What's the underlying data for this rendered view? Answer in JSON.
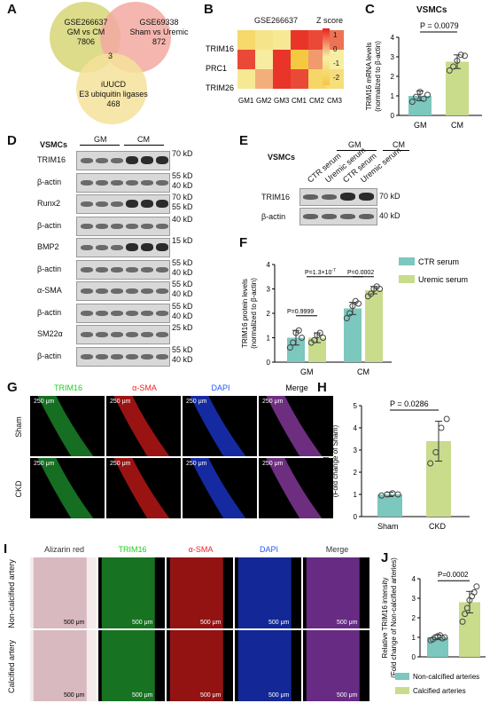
{
  "panels": {
    "A": {
      "label": "A",
      "circle1": [
        "GSE266637",
        "GM vs CM",
        "7806"
      ],
      "circle2": [
        "GSE69338",
        "Sham vs Uremic",
        "872"
      ],
      "circle3": [
        "iUUCD",
        "E3 ubiquitin ligases",
        "468"
      ],
      "overlap": "3",
      "colors": {
        "c1": "#dcdc8a",
        "c2": "#f2a9a0",
        "c3": "#f5e29a"
      }
    },
    "B": {
      "label": "B",
      "title": "GSE266637",
      "rows": [
        "TRIM16",
        "PRC1",
        "TRIM26"
      ],
      "cols": [
        "GM1",
        "GM2",
        "GM3",
        "CM1",
        "CM2",
        "CM3"
      ],
      "matrix": [
        [
          -1.2,
          -0.6,
          -0.4,
          0.9,
          0.8,
          0.6
        ],
        [
          0.8,
          -0.2,
          0.9,
          -2,
          0.4,
          -0.1
        ],
        [
          -0.4,
          0.3,
          0.9,
          0.8,
          -1.3,
          -0.9
        ]
      ],
      "legend_title": "Z score",
      "legend_ticks": [
        "1",
        "0",
        "-1",
        "-2"
      ]
    },
    "C": {
      "label": "C",
      "title": "VSMCs",
      "pvalue": "P = 0.0079",
      "ylabel": "TRIM16 mRNA levels (normalized to β-actin)",
      "yticks": [
        "0",
        "1",
        "2",
        "3",
        "4"
      ],
      "categories": [
        "GM",
        "CM"
      ]
    },
    "D": {
      "label": "D",
      "title": "VSMCs",
      "groups": [
        "GM",
        "CM"
      ],
      "rows": [
        {
          "name": "TRIM16",
          "marks": [
            "70 kD"
          ]
        },
        {
          "name": "β-actin",
          "marks": [
            "55 kD",
            "40 kD"
          ]
        },
        {
          "name": "Runx2",
          "marks": [
            "70 kD",
            "55 kD"
          ]
        },
        {
          "name": "β-actin",
          "marks": [
            "40 kD"
          ]
        },
        {
          "name": "BMP2",
          "marks": [
            "15 kD"
          ]
        },
        {
          "name": "β-actin",
          "marks": [
            "55 kD",
            "40 kD"
          ]
        },
        {
          "name": "α-SMA",
          "marks": [
            "55 kD",
            "40 kD"
          ]
        },
        {
          "name": "β-actin",
          "marks": [
            "55 kD",
            "40 kD"
          ]
        },
        {
          "name": "SM22α",
          "marks": [
            "25 kD"
          ]
        },
        {
          "name": "β-actin",
          "marks": [
            "55 kD",
            "40 kD"
          ]
        }
      ]
    },
    "E": {
      "label": "E",
      "title": "VSMCs",
      "groups": [
        "GM",
        "CM"
      ],
      "lanes": [
        "CTR serum",
        "Uremic serum",
        "CTR serum",
        "Uremic serum"
      ],
      "rows": [
        {
          "name": "TRIM16",
          "marks": [
            "70 kD"
          ]
        },
        {
          "name": "β-actin",
          "marks": [
            "40 kD"
          ]
        }
      ]
    },
    "F": {
      "label": "F",
      "ylabel": "TRIM16 protein levels (normalized to β-actin)",
      "yticks": [
        "0",
        "1",
        "2",
        "3",
        "4"
      ],
      "categories": [
        "GM",
        "CM"
      ],
      "p1": "P=0.9999",
      "p2": "P=0.0002",
      "p3": "P=1.3×10",
      "p3sup": "-7",
      "legend": [
        "CTR serum",
        "Uremic serum"
      ]
    },
    "G": {
      "label": "G",
      "cols": [
        "TRIM16",
        "α-SMA",
        "DAPI",
        "Merge"
      ],
      "rows": [
        "Sham",
        "CKD"
      ],
      "scale": "250 μm",
      "colcolors": [
        "#22cc22",
        "#ee2222",
        "#2255ff",
        "#ffffff"
      ]
    },
    "H": {
      "label": "H",
      "pvalue": "P = 0.0286",
      "ylabel": "Relative TRIM16 intensity (Fold change of Sham)",
      "yticks": [
        "0",
        "1",
        "2",
        "3",
        "4",
        "5"
      ],
      "categories": [
        "Sham",
        "CKD"
      ]
    },
    "I": {
      "label": "I",
      "cols": [
        "Alizarin red",
        "TRIM16",
        "α-SMA",
        "DAPI",
        "Merge"
      ],
      "rows": [
        "Non-calcified artery",
        "Calcified artery"
      ],
      "scale": "500 μm",
      "colcolors": [
        "#333333",
        "#22cc22",
        "#ee2222",
        "#2255ff",
        "#333333"
      ]
    },
    "J": {
      "label": "J",
      "pvalue": "P=0.0002",
      "ylabel": "Relative TRIM16 intensity (Fold change of Non-calcified arteries)",
      "yticks": [
        "0",
        "1",
        "2",
        "3",
        "4"
      ],
      "legend": [
        "Non-calcified arteries",
        "Calcified arteries"
      ]
    }
  },
  "chart_data": [
    {
      "type": "bar",
      "categories": [
        "GM",
        "CM"
      ],
      "values": [
        1.0,
        2.75
      ],
      "ylim": [
        0,
        4
      ],
      "points": [
        [
          0.7,
          0.95,
          1.2,
          0.85,
          1.05
        ],
        [
          2.3,
          2.5,
          2.8,
          3.1,
          3.05
        ]
      ]
    },
    {
      "type": "bar",
      "categories": [
        "GM",
        "CM"
      ],
      "series": [
        {
          "name": "CTR serum",
          "values": [
            1.0,
            2.2
          ],
          "points": [
            [
              0.6,
              0.8,
              1.2,
              1.3,
              1.0
            ],
            [
              1.8,
              2.0,
              2.3,
              2.5,
              2.4
            ]
          ]
        },
        {
          "name": "Uremic serum",
          "values": [
            1.0,
            2.95
          ],
          "points": [
            [
              0.8,
              0.9,
              1.1,
              1.2,
              1.0
            ],
            [
              2.7,
              2.8,
              3.0,
              3.1,
              3.0
            ]
          ]
        }
      ],
      "ylim": [
        0,
        4
      ]
    },
    {
      "type": "bar",
      "categories": [
        "Sham",
        "CKD"
      ],
      "values": [
        1.0,
        3.4
      ],
      "ylim": [
        0,
        5
      ],
      "points": [
        [
          0.95,
          1.0,
          1.05,
          1.0
        ],
        [
          2.4,
          2.9,
          4.0,
          4.4
        ]
      ]
    },
    {
      "type": "bar",
      "categories": [
        "Non-calcified arteries",
        "Calcified arteries"
      ],
      "values": [
        1.0,
        2.8
      ],
      "ylim": [
        0,
        4
      ],
      "points": [
        [
          0.85,
          0.9,
          1.0,
          1.05,
          1.1,
          0.95,
          1.0
        ],
        [
          1.8,
          2.2,
          2.5,
          2.9,
          3.1,
          3.3,
          3.6
        ]
      ]
    }
  ]
}
